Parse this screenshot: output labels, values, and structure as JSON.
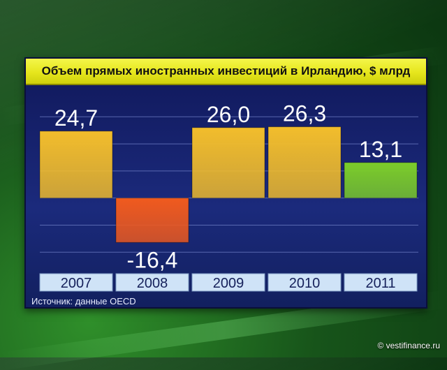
{
  "chart_data": {
    "type": "bar",
    "title": "Объем прямых иностранных инвестиций в Ирландию, $ млрд",
    "categories": [
      "2007",
      "2008",
      "2009",
      "2010",
      "2011"
    ],
    "values": [
      24.7,
      -16.4,
      26.0,
      26.3,
      13.1
    ],
    "value_labels": [
      "24,7",
      "-16,4",
      "26,0",
      "26,3",
      "13,1"
    ],
    "bar_colors": [
      "#f2bd2c",
      "#f05a1e",
      "#f2bd2c",
      "#f2bd2c",
      "#7ccc2a"
    ],
    "ylim": [
      -22,
      36
    ],
    "grid": true
  },
  "source_label": "Источник: данные OECD",
  "watermark": "© vestifinance.ru"
}
